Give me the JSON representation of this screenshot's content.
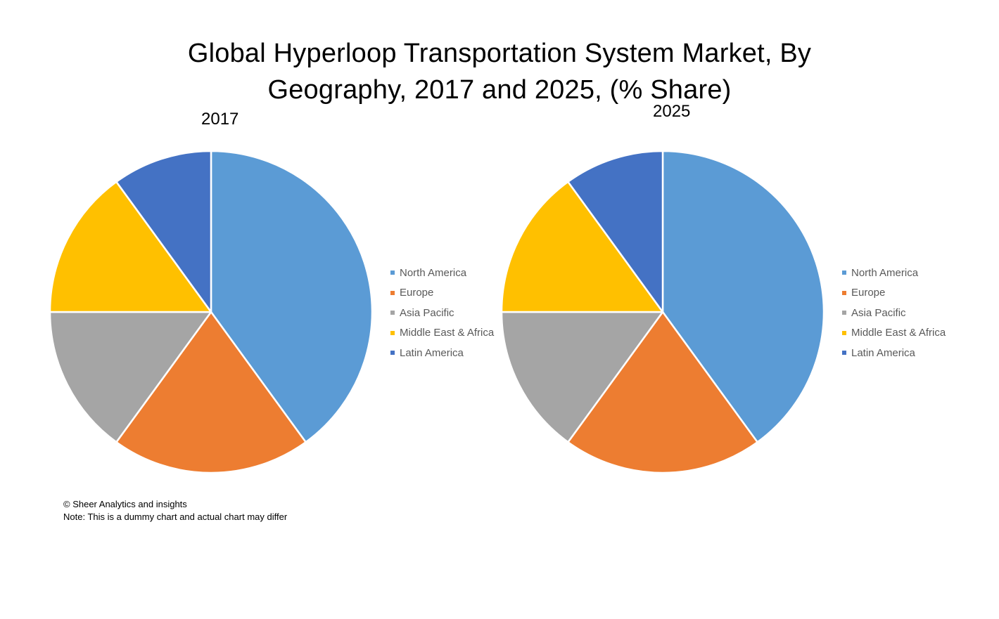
{
  "title": {
    "line1": "Global Hyperloop Transportation System Market, By",
    "line2": "Geography, 2017 and 2025, (% Share)"
  },
  "chart_data": [
    {
      "type": "pie",
      "title": "2017",
      "categories": [
        "North America",
        "Europe",
        "Asia Pacific",
        "Middle East & Africa",
        "Latin America"
      ],
      "values": [
        40,
        20,
        15,
        15,
        10
      ],
      "unit": "% share",
      "colors": [
        "#5B9BD5",
        "#ED7D31",
        "#A5A5A5",
        "#FFC000",
        "#4472C4"
      ],
      "legend_position": "right"
    },
    {
      "type": "pie",
      "title": "2025",
      "categories": [
        "North America",
        "Europe",
        "Asia Pacific",
        "Middle East & Africa",
        "Latin America"
      ],
      "values": [
        40,
        20,
        15,
        15,
        10
      ],
      "unit": "% share",
      "colors": [
        "#5B9BD5",
        "#ED7D31",
        "#A5A5A5",
        "#FFC000",
        "#4472C4"
      ],
      "legend_position": "right"
    }
  ],
  "footnote": {
    "copyright": "© Sheer Analytics and insights",
    "note": "Note: This is a dummy chart and actual chart may differ"
  }
}
